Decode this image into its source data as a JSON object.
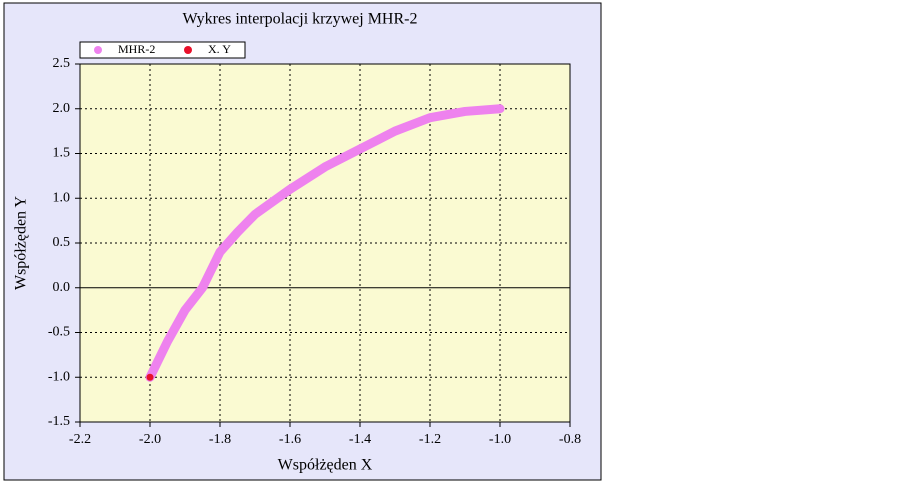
{
  "chart_data": {
    "type": "scatter",
    "title": "Wykres interpolacji krzywej MHR-2",
    "x_label": "Współżęden X",
    "y_label": "Współżęden Y",
    "xlim": [
      -2.2,
      -0.8
    ],
    "xticks": [
      -2.2,
      {
        "value": -2.0,
        "label": "-2.0"
      },
      -1.8,
      -1.6,
      -1.4,
      -1.2,
      {
        "value": -1.0,
        "label": "-1.0"
      },
      -0.8
    ],
    "ylim": [
      -1.5,
      2.5
    ],
    "yticks": [
      -1.5,
      {
        "value": -1.0,
        "label": "-1.0"
      },
      -0.5,
      {
        "value": 0.0,
        "label": "0.0"
      },
      0.5,
      {
        "value": 1.0,
        "label": "1.0"
      },
      1.5,
      {
        "value": 2.0,
        "label": "2.0"
      },
      2.5
    ],
    "grid": true,
    "legend": "top-left",
    "series": [
      {
        "name": "MHR-2",
        "color": "#ee82ee",
        "x": [
          -2.0,
          -1.95,
          -1.9,
          -1.85,
          -1.8,
          -1.75,
          -1.7,
          -1.6,
          -1.5,
          -1.4,
          -1.3,
          -1.2,
          -1.1,
          -1.0
        ],
        "values": [
          -1.0,
          -0.6,
          -0.25,
          0.0,
          0.4,
          0.62,
          0.82,
          1.1,
          1.35,
          1.55,
          1.75,
          1.9,
          1.97,
          2.0
        ]
      },
      {
        "name": "X. Y",
        "color": "#e8102a",
        "x": [
          -2.0
        ],
        "values": [
          -1.0
        ]
      }
    ]
  }
}
